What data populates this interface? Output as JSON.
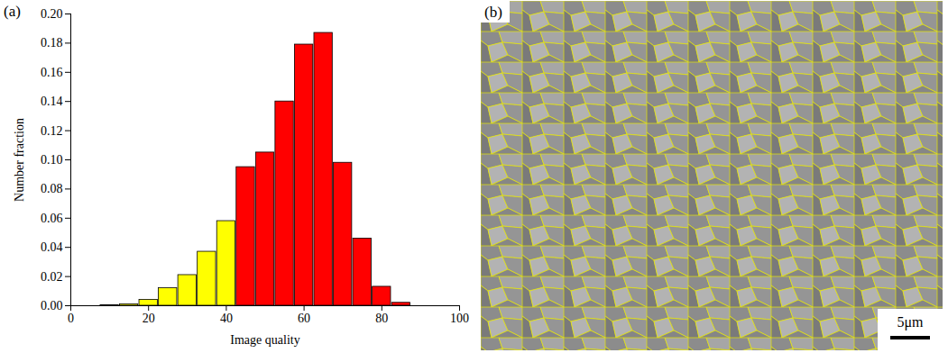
{
  "chart_data": [
    {
      "type": "histogram",
      "panel": "(a)",
      "x_label": "Image quality",
      "y_label": "Number fraction",
      "bins": [
        7.5,
        12.5,
        17.5,
        22.5,
        27.5,
        32.5,
        37.5,
        42.5,
        47.5,
        52.5,
        57.5,
        62.5,
        67.5,
        72.5,
        77.5,
        82.5,
        87.5
      ],
      "values": [
        0.0003,
        0.001,
        0.004,
        0.012,
        0.021,
        0.037,
        0.058,
        0.095,
        0.105,
        0.14,
        0.179,
        0.187,
        0.098,
        0.046,
        0.013,
        0.002
      ],
      "colors": [
        "#ffff00",
        "#ffff00",
        "#ffff00",
        "#ffff00",
        "#ffff00",
        "#ffff00",
        "#ffff00",
        "#ff0000",
        "#ff0000",
        "#ff0000",
        "#ff0000",
        "#ff0000",
        "#ff0000",
        "#ff0000",
        "#ff0000",
        "#ff0000"
      ],
      "xlim": [
        0,
        100
      ],
      "xticks": [
        0,
        20,
        40,
        60,
        80,
        100
      ],
      "ylim": [
        0,
        0.2
      ],
      "yticks": [
        {
          "value": 0,
          "label": "0.00"
        },
        {
          "value": 0.02,
          "label": "0.02"
        },
        {
          "value": 0.04,
          "label": "0.04"
        },
        {
          "value": 0.06,
          "label": "0.06"
        },
        {
          "value": 0.08,
          "label": "0.08"
        },
        {
          "value": 0.1,
          "label": "0.10"
        },
        {
          "value": 0.12,
          "label": "0.12"
        },
        {
          "value": 0.14,
          "label": "0.14"
        },
        {
          "value": 0.16,
          "label": "0.16"
        },
        {
          "value": 0.18,
          "label": "0.18"
        },
        {
          "value": 0.2,
          "label": "0.20"
        }
      ]
    },
    {
      "type": "image",
      "panel": "(b)",
      "scale_bar_label": "5μm"
    }
  ]
}
